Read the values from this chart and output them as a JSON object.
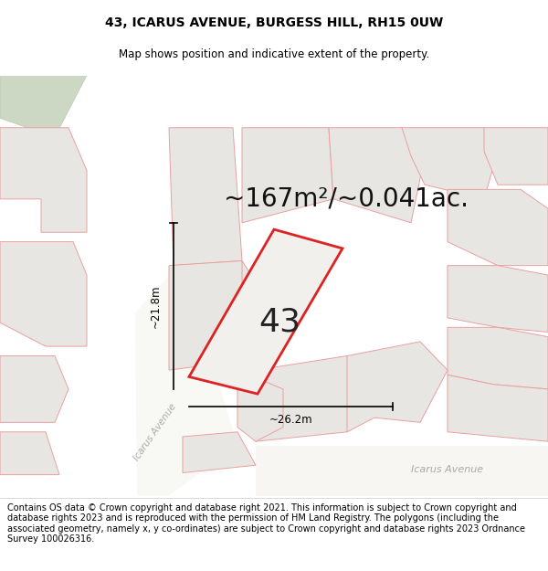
{
  "title": "43, ICARUS AVENUE, BURGESS HILL, RH15 0UW",
  "subtitle": "Map shows position and indicative extent of the property.",
  "area_text": "~167m²/~0.041ac.",
  "plot_number": "43",
  "dim_width": "~26.2m",
  "dim_height": "~21.8m",
  "street_label_diag": "Icarus Avenue",
  "street_label_horiz": "Icarus Avenue",
  "footer": "Contains OS data © Crown copyright and database right 2021. This information is subject to Crown copyright and database rights 2023 and is reproduced with the permission of HM Land Registry. The polygons (including the associated geometry, namely x, y co-ordinates) are subject to Crown copyright and database rights 2023 Ordnance Survey 100026316.",
  "map_bg": "#f2f0ed",
  "road_bg": "#ffffff",
  "plot_color": "#dd2222",
  "plot_fill": "#f2f0ed",
  "surround_edge": "#e8a0a0",
  "surround_fill": "#e8e6e2",
  "green_fill": "#ccd8c4",
  "title_fontsize": 10,
  "subtitle_fontsize": 8.5,
  "area_fontsize": 20,
  "label_fontsize": 26,
  "footer_fontsize": 7
}
